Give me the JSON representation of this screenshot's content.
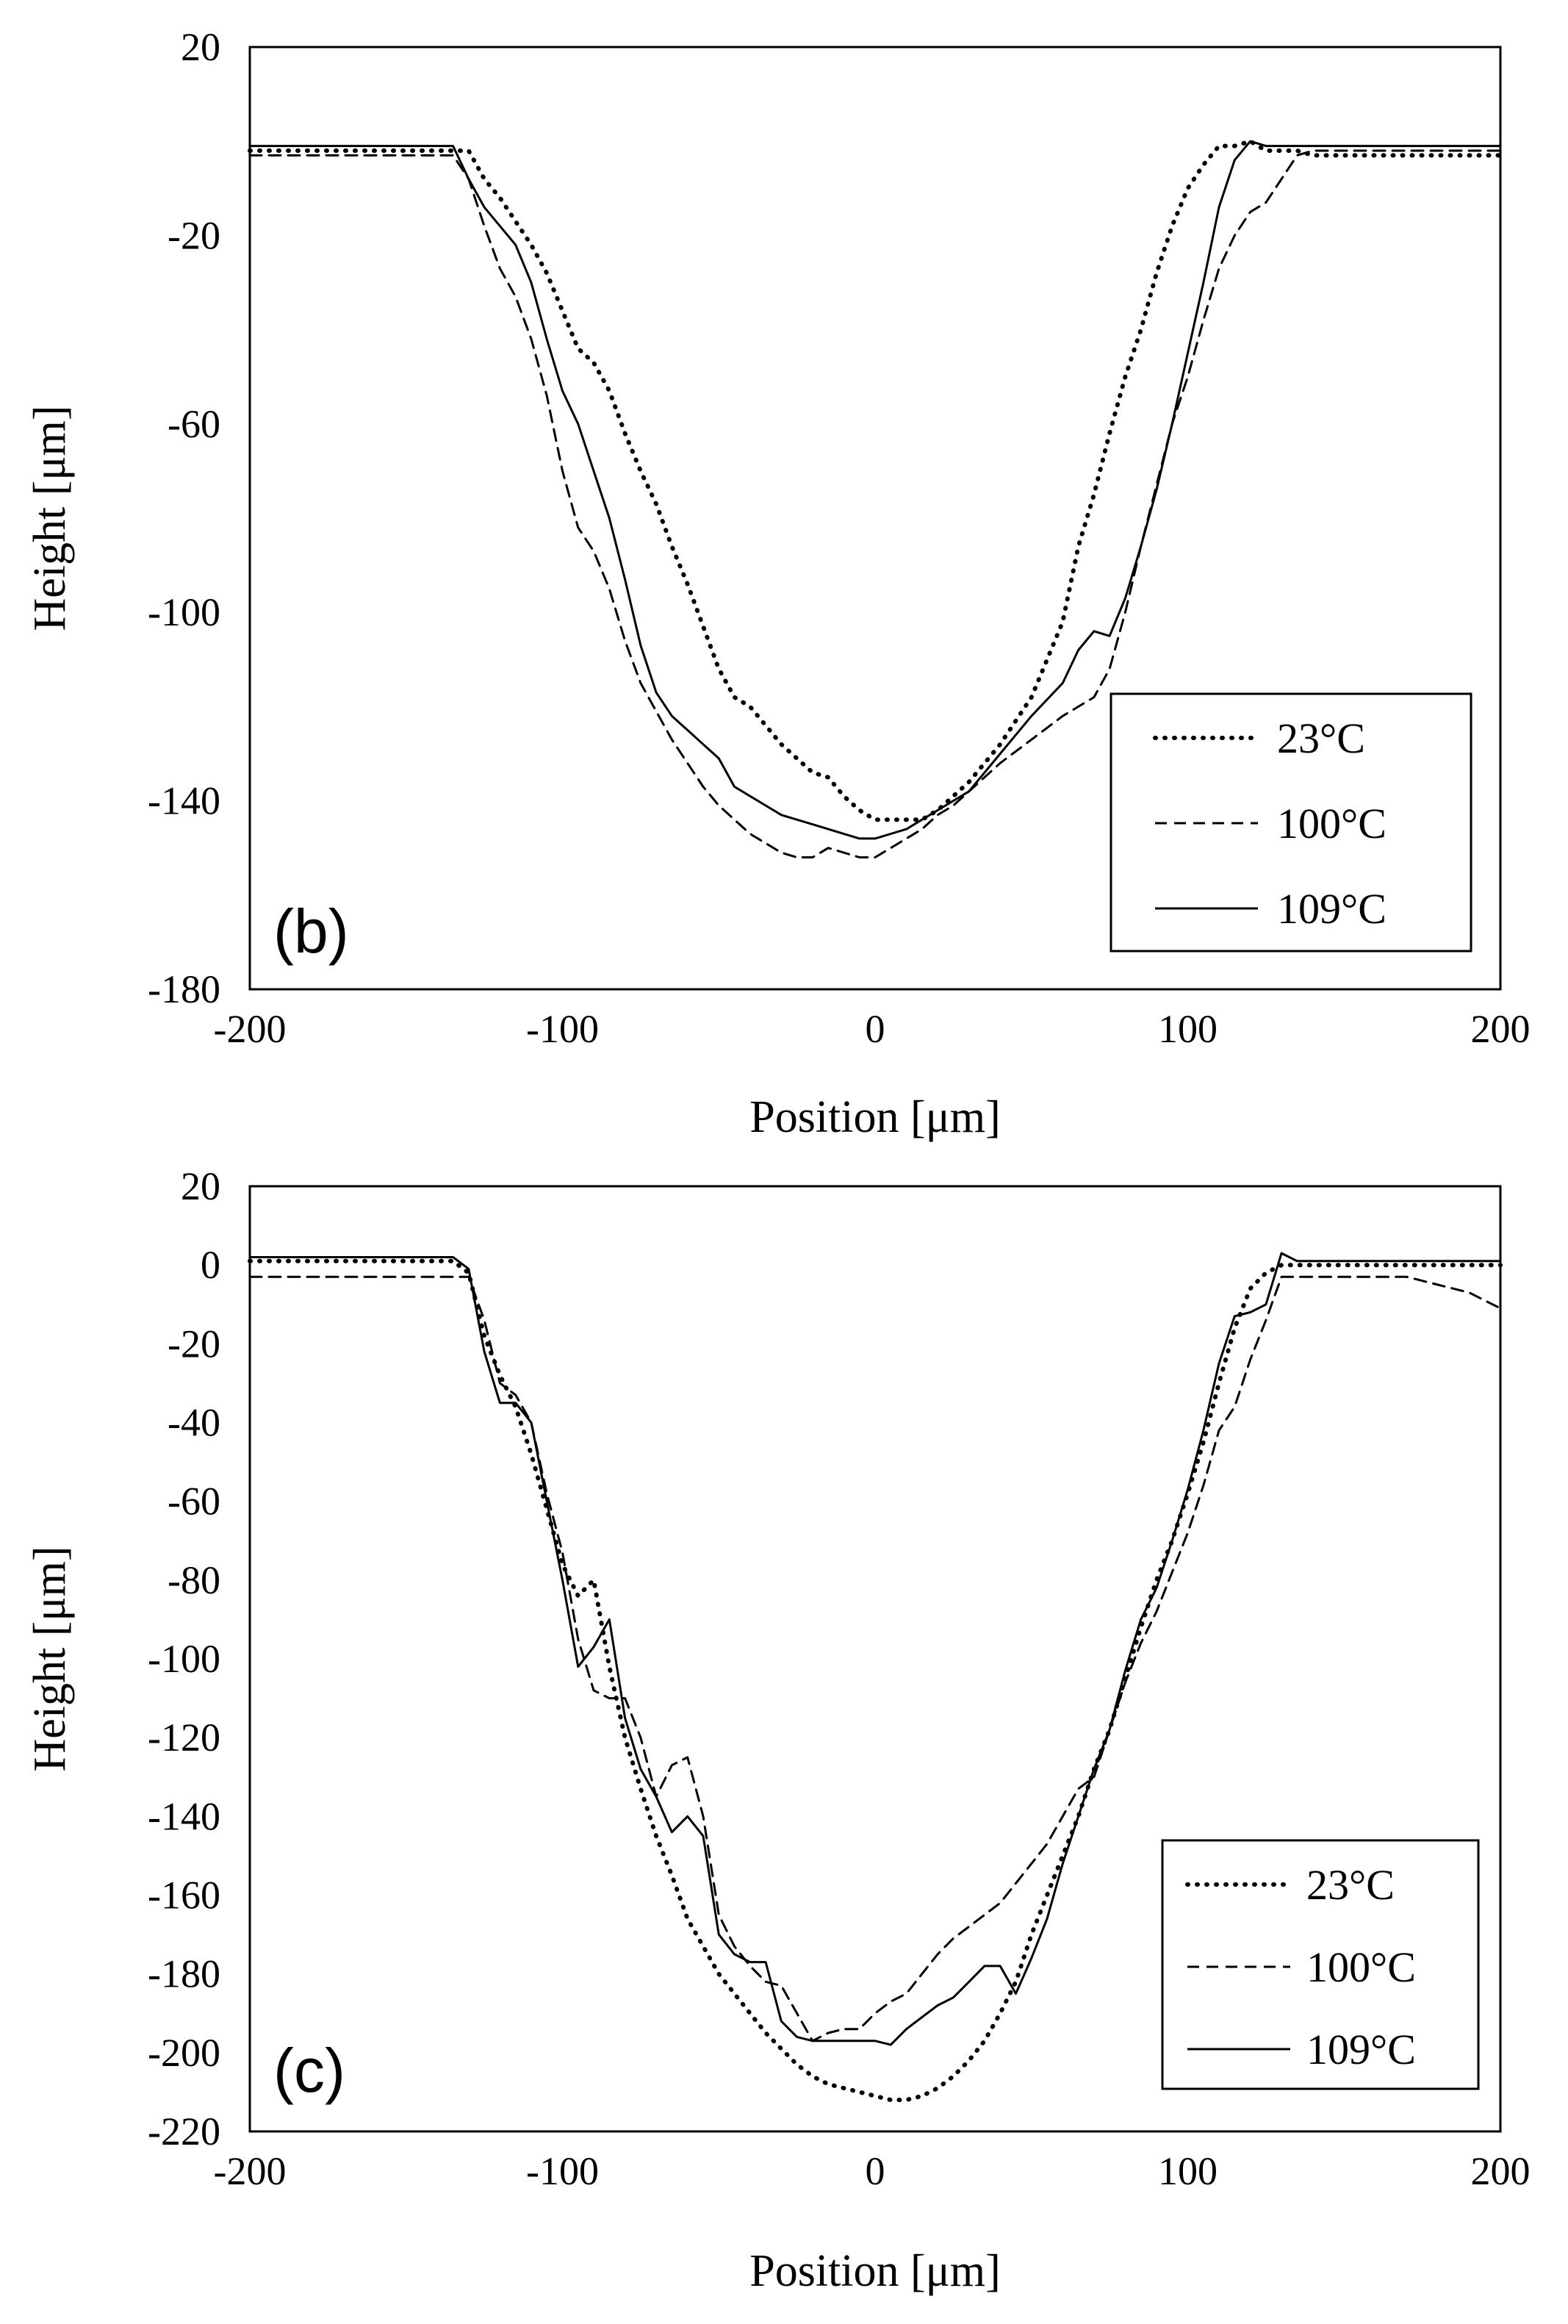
{
  "chart_data": [
    {
      "type": "line",
      "panel_label": "(b)",
      "xlabel": "Position [μm]",
      "ylabel": "Height [μm]",
      "xlim": [
        -200,
        200
      ],
      "ylim": [
        -180,
        20
      ],
      "xticks": [
        -200,
        -100,
        0,
        100,
        200
      ],
      "yticks": [
        20,
        -20,
        -60,
        -100,
        -140,
        -180
      ],
      "legend_position": "bottom-right",
      "series": [
        {
          "name": "23°C",
          "style": "dotted",
          "x": [
            -200,
            -135,
            -130,
            -125,
            -120,
            -115,
            -110,
            -105,
            -100,
            -95,
            -90,
            -85,
            -80,
            -75,
            -70,
            -65,
            -60,
            -55,
            -50,
            -45,
            -40,
            -35,
            -30,
            -25,
            -20,
            -15,
            -10,
            -5,
            0,
            5,
            10,
            15,
            20,
            30,
            40,
            50,
            60,
            65,
            70,
            75,
            80,
            85,
            90,
            95,
            100,
            105,
            110,
            115,
            120,
            125,
            130,
            135,
            140,
            150,
            200
          ],
          "y": [
            -2,
            -2,
            -2,
            -8,
            -12,
            -17,
            -22,
            -28,
            -36,
            -44,
            -47,
            -53,
            -62,
            -70,
            -77,
            -86,
            -94,
            -103,
            -112,
            -118,
            -120,
            -124,
            -128,
            -131,
            -134,
            -135,
            -139,
            -142,
            -144,
            -144,
            -144,
            -144,
            -142,
            -136,
            -128,
            -118,
            -102,
            -86,
            -75,
            -62,
            -50,
            -40,
            -28,
            -18,
            -10,
            -5,
            -1,
            -1,
            0,
            -2,
            -2,
            -2,
            -3,
            -3,
            -3
          ]
        },
        {
          "name": "100°C",
          "style": "dashed",
          "x": [
            -200,
            -140,
            -135,
            -130,
            -125,
            -120,
            -115,
            -110,
            -105,
            -100,
            -95,
            -90,
            -85,
            -80,
            -75,
            -70,
            -65,
            -60,
            -55,
            -50,
            -45,
            -40,
            -35,
            -30,
            -25,
            -20,
            -15,
            -10,
            -5,
            0,
            5,
            10,
            15,
            20,
            25,
            30,
            40,
            50,
            60,
            65,
            70,
            75,
            80,
            85,
            90,
            95,
            100,
            105,
            110,
            115,
            120,
            125,
            130,
            135,
            140,
            145,
            150,
            200
          ],
          "y": [
            -3,
            -3,
            -3,
            -8,
            -18,
            -27,
            -33,
            -42,
            -54,
            -70,
            -82,
            -87,
            -95,
            -106,
            -115,
            -121,
            -127,
            -132,
            -137,
            -141,
            -144,
            -147,
            -149,
            -151,
            -152,
            -152,
            -150,
            -151,
            -152,
            -152,
            -150,
            -148,
            -146,
            -143,
            -141,
            -138,
            -132,
            -127,
            -122,
            -120,
            -118,
            -112,
            -100,
            -86,
            -73,
            -60,
            -50,
            -38,
            -27,
            -20,
            -15,
            -13,
            -8,
            -3,
            -2,
            -2,
            -2,
            -2
          ]
        },
        {
          "name": "109°C",
          "style": "solid",
          "x": [
            -200,
            -135,
            -130,
            -125,
            -120,
            -115,
            -110,
            -105,
            -100,
            -95,
            -90,
            -85,
            -80,
            -75,
            -70,
            -65,
            -60,
            -55,
            -50,
            -45,
            -40,
            -35,
            -30,
            -25,
            -20,
            -15,
            -10,
            -5,
            0,
            5,
            10,
            15,
            20,
            30,
            40,
            50,
            60,
            65,
            70,
            75,
            80,
            85,
            90,
            95,
            100,
            105,
            110,
            115,
            120,
            125,
            130,
            135,
            140,
            150,
            200
          ],
          "y": [
            -1,
            -1,
            -8,
            -14,
            -18,
            -22,
            -30,
            -42,
            -53,
            -60,
            -70,
            -80,
            -93,
            -107,
            -117,
            -122,
            -125,
            -128,
            -131,
            -137,
            -139,
            -141,
            -143,
            -144,
            -145,
            -146,
            -147,
            -148,
            -148,
            -147,
            -146,
            -144,
            -142,
            -138,
            -130,
            -122,
            -115,
            -108,
            -104,
            -105,
            -97,
            -86,
            -74,
            -60,
            -45,
            -30,
            -14,
            -4,
            0,
            -1,
            -1,
            -1,
            -1,
            -1,
            -1
          ]
        }
      ]
    },
    {
      "type": "line",
      "panel_label": "(c)",
      "xlabel": "Position [μm]",
      "ylabel": "Height [μm]",
      "xlim": [
        -200,
        200
      ],
      "ylim": [
        -220,
        20
      ],
      "xticks": [
        -200,
        -100,
        0,
        100,
        200
      ],
      "yticks": [
        20,
        0,
        -20,
        -40,
        -60,
        -80,
        -100,
        -120,
        -140,
        -160,
        -180,
        -200,
        -220
      ],
      "legend_position": "bottom-right",
      "series": [
        {
          "name": "23°C",
          "style": "dotted",
          "x": [
            -200,
            -135,
            -130,
            -125,
            -120,
            -115,
            -110,
            -105,
            -100,
            -95,
            -90,
            -85,
            -80,
            -75,
            -70,
            -65,
            -60,
            -55,
            -50,
            -45,
            -40,
            -35,
            -30,
            -25,
            -20,
            -15,
            -10,
            -5,
            0,
            5,
            10,
            15,
            20,
            25,
            30,
            35,
            40,
            45,
            50,
            55,
            60,
            65,
            70,
            75,
            80,
            85,
            90,
            95,
            100,
            105,
            110,
            115,
            120,
            125,
            130,
            135,
            140,
            150,
            200
          ],
          "y": [
            1,
            1,
            -2,
            -18,
            -28,
            -36,
            -48,
            -62,
            -76,
            -84,
            -80,
            -102,
            -120,
            -133,
            -145,
            -155,
            -166,
            -173,
            -180,
            -185,
            -190,
            -195,
            -199,
            -203,
            -206,
            -208,
            -209,
            -210,
            -211,
            -212,
            -212,
            -211,
            -209,
            -206,
            -202,
            -197,
            -190,
            -182,
            -170,
            -160,
            -150,
            -140,
            -128,
            -118,
            -105,
            -92,
            -80,
            -70,
            -58,
            -45,
            -30,
            -16,
            -6,
            -2,
            0,
            0,
            0,
            0,
            0
          ]
        },
        {
          "name": "100°C",
          "style": "dashed",
          "x": [
            -200,
            -140,
            -135,
            -130,
            -125,
            -120,
            -115,
            -110,
            -105,
            -100,
            -95,
            -90,
            -85,
            -80,
            -75,
            -70,
            -65,
            -60,
            -55,
            -50,
            -45,
            -40,
            -35,
            -30,
            -25,
            -20,
            -15,
            -10,
            -5,
            0,
            5,
            10,
            15,
            20,
            25,
            30,
            35,
            40,
            45,
            50,
            55,
            60,
            65,
            70,
            75,
            80,
            85,
            90,
            95,
            100,
            105,
            110,
            115,
            120,
            125,
            130,
            135,
            140,
            150,
            160,
            170,
            180,
            190,
            200
          ],
          "y": [
            -3,
            -3,
            -3,
            -3,
            -14,
            -30,
            -33,
            -40,
            -58,
            -73,
            -95,
            -108,
            -110,
            -110,
            -120,
            -135,
            -127,
            -125,
            -140,
            -165,
            -173,
            -178,
            -182,
            -183,
            -190,
            -197,
            -195,
            -194,
            -194,
            -190,
            -187,
            -185,
            -180,
            -175,
            -171,
            -168,
            -165,
            -162,
            -157,
            -152,
            -147,
            -140,
            -133,
            -130,
            -118,
            -106,
            -96,
            -88,
            -78,
            -68,
            -56,
            -42,
            -36,
            -24,
            -14,
            -3,
            -3,
            -3,
            -3,
            -3,
            -3,
            -5,
            -7,
            -11
          ]
        },
        {
          "name": "109°C",
          "style": "solid",
          "x": [
            -200,
            -135,
            -130,
            -125,
            -120,
            -115,
            -110,
            -105,
            -100,
            -95,
            -90,
            -85,
            -80,
            -75,
            -70,
            -65,
            -60,
            -55,
            -50,
            -45,
            -40,
            -35,
            -30,
            -25,
            -20,
            -15,
            -10,
            -5,
            0,
            5,
            10,
            15,
            20,
            25,
            30,
            35,
            40,
            45,
            50,
            55,
            60,
            65,
            70,
            75,
            80,
            85,
            90,
            95,
            100,
            105,
            110,
            115,
            120,
            125,
            130,
            135,
            140,
            150,
            200
          ],
          "y": [
            2,
            2,
            -1,
            -22,
            -35,
            -35,
            -40,
            -60,
            -80,
            -102,
            -97,
            -90,
            -115,
            -128,
            -135,
            -144,
            -140,
            -145,
            -170,
            -175,
            -177,
            -177,
            -192,
            -196,
            -197,
            -197,
            -197,
            -197,
            -197,
            -198,
            -194,
            -191,
            -188,
            -186,
            -182,
            -178,
            -178,
            -185,
            -176,
            -166,
            -152,
            -140,
            -128,
            -118,
            -103,
            -90,
            -82,
            -70,
            -57,
            -42,
            -25,
            -13,
            -12,
            -10,
            3,
            1,
            1,
            1,
            1
          ]
        }
      ]
    }
  ]
}
